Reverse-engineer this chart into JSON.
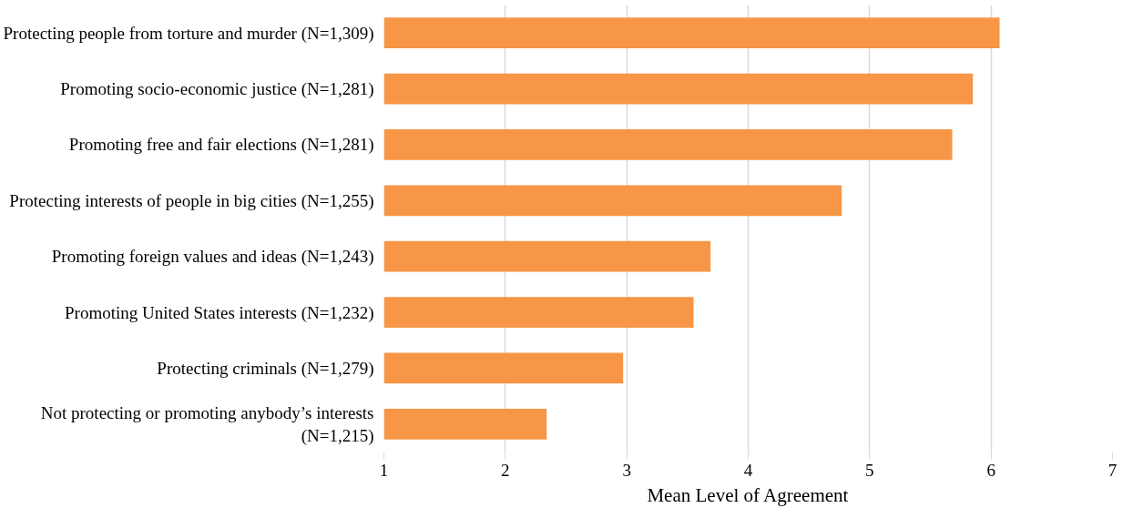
{
  "chart_data": {
    "type": "bar",
    "orientation": "horizontal",
    "categories": [
      "Protecting people from torture and murder (N=1,309)",
      "Promoting socio-economic justice (N=1,281)",
      "Promoting free and fair elections (N=1,281)",
      "Protecting interests of people in big cities (N=1,255)",
      "Promoting foreign values and ideas (N=1,243)",
      "Promoting United States interests (N=1,232)",
      "Protecting criminals (N=1,279)",
      "Not protecting or promoting anybody’s interests (N=1,215)"
    ],
    "values": [
      6.07,
      5.85,
      5.68,
      4.77,
      3.69,
      3.55,
      2.97,
      2.34
    ],
    "color": "#f79646",
    "xlabel": "Mean Level of Agreement",
    "xlim": [
      1,
      7
    ],
    "xticks": [
      1,
      2,
      3,
      4,
      5,
      6,
      7
    ],
    "grid": "x"
  }
}
